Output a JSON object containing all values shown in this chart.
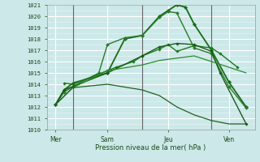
{
  "xlabel": "Pression niveau de la mer( hPa )",
  "ylim": [
    1010,
    1021
  ],
  "xlim": [
    0,
    12
  ],
  "yticks": [
    1010,
    1011,
    1012,
    1013,
    1014,
    1015,
    1016,
    1017,
    1018,
    1019,
    1020,
    1021
  ],
  "day_labels": [
    "Mer",
    "Sam",
    "Jeu",
    "Ven"
  ],
  "day_positions": [
    0.5,
    3.5,
    7.0,
    10.5
  ],
  "vline_positions": [
    1.5,
    5.5,
    9.5
  ],
  "background_color": "#cce8e8",
  "grid_color": "#ffffff",
  "tick_color": "#1a4a1a",
  "lines": [
    {
      "x": [
        0.5,
        1.0,
        1.5,
        3.5,
        4.5,
        5.5,
        6.5,
        7.0,
        7.5,
        8.0,
        8.5,
        9.5,
        10.5,
        11.5
      ],
      "y": [
        1012.2,
        1013.5,
        1014.1,
        1015.0,
        1018.0,
        1018.3,
        1020.0,
        1020.5,
        1021.0,
        1020.8,
        1019.3,
        1017.0,
        1014.2,
        1012.0
      ],
      "color": "#1a6b1a",
      "lw": 1.3,
      "marker": "D",
      "ms": 2.2
    },
    {
      "x": [
        0.5,
        1.0,
        1.5,
        3.0,
        3.5,
        4.5,
        5.5,
        6.5,
        7.0,
        7.5,
        8.5,
        9.5,
        10.5,
        11.5
      ],
      "y": [
        1012.2,
        1013.3,
        1013.8,
        1015.0,
        1017.5,
        1018.1,
        1018.3,
        1019.9,
        1020.4,
        1020.3,
        1017.2,
        1016.7,
        1013.8,
        1011.9
      ],
      "color": "#2a7a2a",
      "lw": 1.0,
      "marker": "D",
      "ms": 2.0
    },
    {
      "x": [
        1.0,
        1.5,
        3.5,
        4.0,
        5.0,
        5.5,
        6.5,
        7.0,
        7.5,
        8.5,
        9.5,
        10.0,
        11.0
      ],
      "y": [
        1014.1,
        1014.0,
        1015.2,
        1015.5,
        1016.0,
        1016.5,
        1017.1,
        1017.5,
        1016.9,
        1017.4,
        1017.2,
        1016.7,
        1015.5
      ],
      "color": "#1a7a1a",
      "lw": 1.0,
      "marker": "D",
      "ms": 1.8
    },
    {
      "x": [
        0.5,
        1.0,
        1.5,
        3.5,
        5.5,
        6.5,
        7.5,
        8.5,
        9.5,
        10.0,
        11.5
      ],
      "y": [
        1012.2,
        1013.5,
        1013.8,
        1015.0,
        1016.5,
        1017.3,
        1017.6,
        1017.5,
        1016.9,
        1015.0,
        1010.5
      ],
      "color": "#1a5c1a",
      "lw": 1.0,
      "marker": "D",
      "ms": 1.8
    },
    {
      "x": [
        0.5,
        1.5,
        3.5,
        5.5,
        6.5,
        7.5,
        8.5,
        9.5,
        11.5
      ],
      "y": [
        1012.2,
        1013.7,
        1015.2,
        1015.7,
        1016.1,
        1016.3,
        1016.5,
        1016.0,
        1015.0
      ],
      "color": "#2a8a2a",
      "lw": 0.9,
      "marker": null,
      "ms": 0
    },
    {
      "x": [
        0.5,
        1.5,
        3.5,
        5.5,
        6.5,
        7.5,
        8.5,
        9.5,
        10.5,
        11.5
      ],
      "y": [
        1012.2,
        1013.7,
        1014.0,
        1013.5,
        1013.0,
        1012.0,
        1011.3,
        1010.8,
        1010.5,
        1010.5
      ],
      "color": "#206020",
      "lw": 0.9,
      "marker": null,
      "ms": 0
    }
  ],
  "figsize": [
    3.2,
    2.0
  ],
  "dpi": 100
}
